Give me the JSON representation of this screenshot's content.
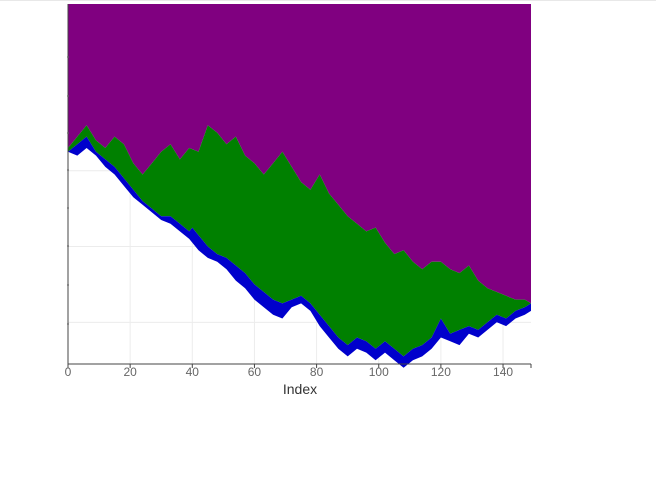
{
  "chart_data": {
    "type": "area",
    "stacked": true,
    "xlabel": "Index",
    "ylabel": "",
    "xlim": [
      0,
      149
    ],
    "ylim": [
      -8.6,
      0.9
    ],
    "x_ticks": [
      0,
      20,
      40,
      60,
      80,
      100,
      120,
      140
    ],
    "x_tick_labels": [
      "0",
      "20",
      "40",
      "60",
      "80",
      "100",
      "120",
      "140"
    ],
    "y_gridlines": [
      -7.5,
      -5.5,
      -3.5,
      -1.5
    ],
    "grid": true,
    "legend": "none",
    "series_colors": [
      "#0000cc",
      "#008000",
      "#800080"
    ],
    "top_value": 0.9,
    "base_points": [
      [
        0,
        -3.0
      ],
      [
        3,
        -3.1
      ],
      [
        6,
        -2.9
      ],
      [
        9,
        -3.1
      ],
      [
        12,
        -3.4
      ],
      [
        15,
        -3.6
      ],
      [
        18,
        -3.9
      ],
      [
        21,
        -4.2
      ],
      [
        24,
        -4.4
      ],
      [
        27,
        -4.6
      ],
      [
        30,
        -4.8
      ],
      [
        33,
        -4.9
      ],
      [
        36,
        -5.1
      ],
      [
        39,
        -5.3
      ],
      [
        42,
        -5.6
      ],
      [
        45,
        -5.8
      ],
      [
        48,
        -5.9
      ],
      [
        51,
        -6.1
      ],
      [
        54,
        -6.4
      ],
      [
        57,
        -6.6
      ],
      [
        60,
        -6.9
      ],
      [
        63,
        -7.1
      ],
      [
        66,
        -7.3
      ],
      [
        69,
        -7.4
      ],
      [
        72,
        -7.1
      ],
      [
        75,
        -7.0
      ],
      [
        78,
        -7.2
      ],
      [
        81,
        -7.6
      ],
      [
        84,
        -7.9
      ],
      [
        87,
        -8.2
      ],
      [
        90,
        -8.4
      ],
      [
        93,
        -8.2
      ],
      [
        96,
        -8.3
      ],
      [
        99,
        -8.5
      ],
      [
        102,
        -8.3
      ],
      [
        105,
        -8.5
      ],
      [
        108,
        -8.7
      ],
      [
        111,
        -8.5
      ],
      [
        114,
        -8.4
      ],
      [
        117,
        -8.2
      ],
      [
        120,
        -7.9
      ],
      [
        123,
        -8.0
      ],
      [
        126,
        -8.1
      ],
      [
        129,
        -7.8
      ],
      [
        132,
        -7.9
      ],
      [
        135,
        -7.7
      ],
      [
        138,
        -7.5
      ],
      [
        141,
        -7.6
      ],
      [
        144,
        -7.4
      ],
      [
        147,
        -7.3
      ],
      [
        149,
        -7.2
      ]
    ],
    "blue_points": [
      [
        0,
        -3.0
      ],
      [
        3,
        -2.8
      ],
      [
        6,
        -2.6
      ],
      [
        9,
        -3.0
      ],
      [
        12,
        -3.2
      ],
      [
        15,
        -3.4
      ],
      [
        18,
        -3.7
      ],
      [
        21,
        -4.0
      ],
      [
        24,
        -4.3
      ],
      [
        27,
        -4.5
      ],
      [
        30,
        -4.7
      ],
      [
        33,
        -4.7
      ],
      [
        36,
        -4.9
      ],
      [
        39,
        -5.1
      ],
      [
        40,
        -5.0
      ],
      [
        42,
        -5.2
      ],
      [
        45,
        -5.5
      ],
      [
        48,
        -5.7
      ],
      [
        51,
        -5.8
      ],
      [
        54,
        -6.0
      ],
      [
        57,
        -6.2
      ],
      [
        60,
        -6.5
      ],
      [
        63,
        -6.7
      ],
      [
        66,
        -6.9
      ],
      [
        69,
        -7.0
      ],
      [
        72,
        -6.9
      ],
      [
        75,
        -6.8
      ],
      [
        78,
        -7.0
      ],
      [
        81,
        -7.3
      ],
      [
        84,
        -7.6
      ],
      [
        87,
        -7.9
      ],
      [
        90,
        -8.1
      ],
      [
        93,
        -7.9
      ],
      [
        96,
        -8.0
      ],
      [
        99,
        -8.2
      ],
      [
        102,
        -8.0
      ],
      [
        105,
        -8.2
      ],
      [
        108,
        -8.4
      ],
      [
        111,
        -8.2
      ],
      [
        114,
        -8.1
      ],
      [
        117,
        -7.9
      ],
      [
        120,
        -7.4
      ],
      [
        123,
        -7.8
      ],
      [
        126,
        -7.7
      ],
      [
        129,
        -7.6
      ],
      [
        132,
        -7.7
      ],
      [
        135,
        -7.5
      ],
      [
        138,
        -7.3
      ],
      [
        141,
        -7.4
      ],
      [
        144,
        -7.2
      ],
      [
        147,
        -7.1
      ],
      [
        149,
        -7.0
      ]
    ],
    "green_points": [
      [
        0,
        -2.9
      ],
      [
        3,
        -2.6
      ],
      [
        6,
        -2.3
      ],
      [
        9,
        -2.7
      ],
      [
        12,
        -2.9
      ],
      [
        15,
        -2.6
      ],
      [
        18,
        -2.8
      ],
      [
        21,
        -3.3
      ],
      [
        24,
        -3.6
      ],
      [
        27,
        -3.3
      ],
      [
        30,
        -3.0
      ],
      [
        33,
        -2.8
      ],
      [
        36,
        -3.2
      ],
      [
        39,
        -2.9
      ],
      [
        42,
        -3.0
      ],
      [
        45,
        -2.3
      ],
      [
        48,
        -2.5
      ],
      [
        51,
        -2.8
      ],
      [
        54,
        -2.6
      ],
      [
        57,
        -3.1
      ],
      [
        60,
        -3.3
      ],
      [
        63,
        -3.6
      ],
      [
        66,
        -3.3
      ],
      [
        69,
        -3.0
      ],
      [
        72,
        -3.4
      ],
      [
        75,
        -3.8
      ],
      [
        78,
        -4.0
      ],
      [
        81,
        -3.6
      ],
      [
        84,
        -4.1
      ],
      [
        87,
        -4.4
      ],
      [
        90,
        -4.7
      ],
      [
        93,
        -4.9
      ],
      [
        96,
        -5.1
      ],
      [
        99,
        -5.0
      ],
      [
        102,
        -5.4
      ],
      [
        105,
        -5.7
      ],
      [
        108,
        -5.6
      ],
      [
        111,
        -5.9
      ],
      [
        114,
        -6.1
      ],
      [
        117,
        -5.9
      ],
      [
        120,
        -5.9
      ],
      [
        123,
        -6.1
      ],
      [
        126,
        -6.2
      ],
      [
        129,
        -6.0
      ],
      [
        132,
        -6.4
      ],
      [
        135,
        -6.6
      ],
      [
        138,
        -6.7
      ],
      [
        141,
        -6.8
      ],
      [
        144,
        -6.9
      ],
      [
        147,
        -6.9
      ],
      [
        149,
        -7.0
      ]
    ]
  }
}
